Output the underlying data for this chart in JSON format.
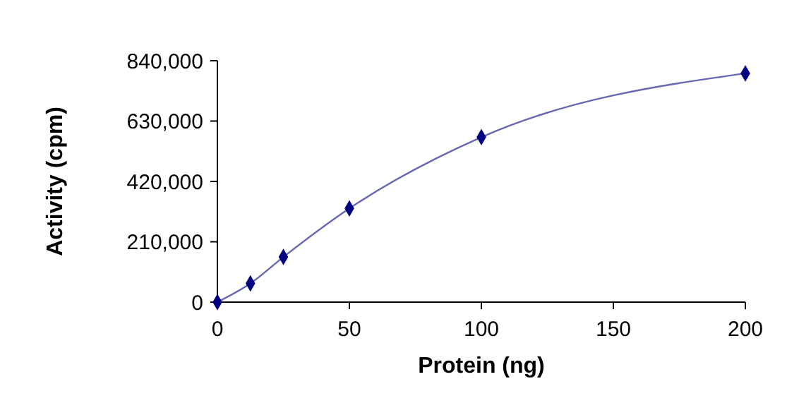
{
  "chart_data": {
    "type": "line",
    "xlabel": "Protein (ng)",
    "ylabel": "Activity (cpm)",
    "x": [
      0,
      12.5,
      25,
      50,
      100,
      200
    ],
    "series": [
      {
        "color": "#000080",
        "values": [
          0,
          65000,
          157000,
          326000,
          574000,
          796000
        ]
      }
    ],
    "xlim": [
      0,
      200
    ],
    "xticks": [
      0,
      50,
      100,
      150,
      200
    ],
    "ylim": [
      0,
      840000
    ],
    "yticks": [
      {
        "value": 0,
        "label": "0"
      },
      {
        "value": 210000,
        "label": "210,000"
      },
      {
        "value": 420000,
        "label": "420,000"
      },
      {
        "value": 630000,
        "label": "630,000"
      },
      {
        "value": 840000,
        "label": "840,000"
      }
    ],
    "marker": "diamond",
    "grid": false
  }
}
